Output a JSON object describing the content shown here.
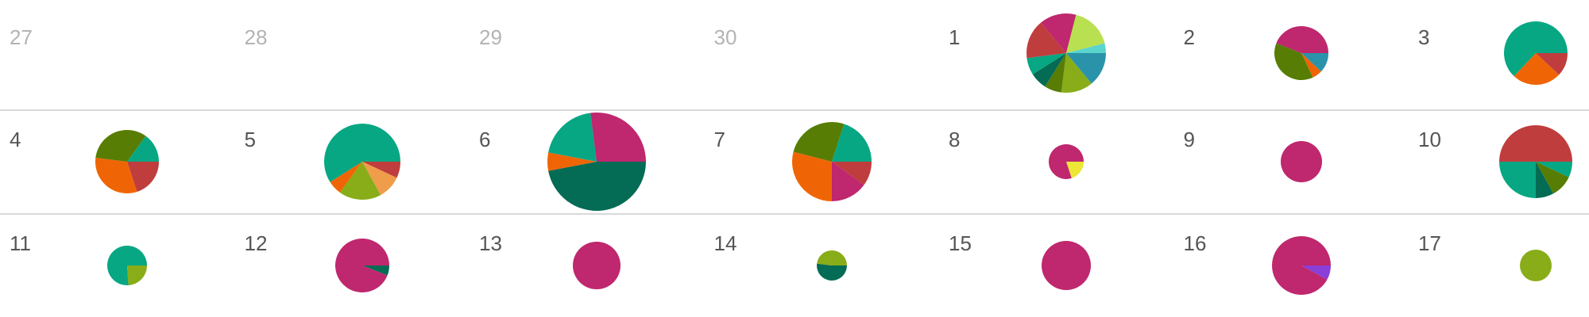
{
  "colors": {
    "magenta": "#bf276e",
    "teal": "#07a783",
    "orange": "#ef6505",
    "olive": "#577d05",
    "red": "#c03d3d",
    "lime": "#88ad19",
    "blue": "#2a93aa",
    "darkgreen": "#046b55",
    "yellowgreen": "#b9e050",
    "cyan": "#5ad4cc",
    "peach": "#ef9d4a",
    "yellow": "#ede637",
    "purple": "#8a3fd8",
    "text": "#555555",
    "muted_text": "#b3b3b3",
    "divider": "#d9d9d9"
  },
  "chart_data": {
    "type": "pie",
    "layout": "calendar",
    "weeks": [
      {
        "days": [
          {
            "label": "27",
            "muted": true,
            "size": 0,
            "slices": []
          },
          {
            "label": "28",
            "muted": true,
            "size": 0,
            "slices": []
          },
          {
            "label": "29",
            "muted": true,
            "size": 0,
            "slices": []
          },
          {
            "label": "30",
            "muted": true,
            "size": 0,
            "slices": []
          },
          {
            "label": "1",
            "muted": false,
            "size": 50,
            "slices": [
              {
                "color": "blue",
                "value": 14
              },
              {
                "color": "lime",
                "value": 13
              },
              {
                "color": "olive",
                "value": 7
              },
              {
                "color": "darkgreen",
                "value": 7
              },
              {
                "color": "teal",
                "value": 7
              },
              {
                "color": "red",
                "value": 16
              },
              {
                "color": "magenta",
                "value": 15
              },
              {
                "color": "yellowgreen",
                "value": 17
              },
              {
                "color": "cyan",
                "value": 4
              }
            ]
          },
          {
            "label": "2",
            "muted": false,
            "size": 34,
            "slices": [
              {
                "color": "blue",
                "value": 12
              },
              {
                "color": "orange",
                "value": 6
              },
              {
                "color": "olive",
                "value": 38
              },
              {
                "color": "magenta",
                "value": 44
              }
            ]
          },
          {
            "label": "3",
            "muted": false,
            "size": 40,
            "slices": [
              {
                "color": "red",
                "value": 12
              },
              {
                "color": "orange",
                "value": 25
              },
              {
                "color": "teal",
                "value": 63
              }
            ]
          }
        ]
      },
      {
        "days": [
          {
            "label": "4",
            "muted": false,
            "size": 40,
            "slices": [
              {
                "color": "red",
                "value": 20
              },
              {
                "color": "orange",
                "value": 32
              },
              {
                "color": "olive",
                "value": 33
              },
              {
                "color": "teal",
                "value": 15
              }
            ]
          },
          {
            "label": "5",
            "muted": false,
            "size": 48,
            "slices": [
              {
                "color": "red",
                "value": 7
              },
              {
                "color": "peach",
                "value": 10
              },
              {
                "color": "lime",
                "value": 18
              },
              {
                "color": "orange",
                "value": 6
              },
              {
                "color": "teal",
                "value": 59
              }
            ]
          },
          {
            "label": "6",
            "muted": false,
            "size": 62,
            "slices": [
              {
                "color": "darkgreen",
                "value": 47
              },
              {
                "color": "orange",
                "value": 6
              },
              {
                "color": "teal",
                "value": 20
              },
              {
                "color": "magenta",
                "value": 27
              }
            ]
          },
          {
            "label": "7",
            "muted": false,
            "size": 50,
            "slices": [
              {
                "color": "red",
                "value": 10
              },
              {
                "color": "magenta",
                "value": 15
              },
              {
                "color": "orange",
                "value": 29
              },
              {
                "color": "olive",
                "value": 26
              },
              {
                "color": "teal",
                "value": 20
              }
            ]
          },
          {
            "label": "8",
            "muted": false,
            "size": 22,
            "slices": [
              {
                "color": "yellow",
                "value": 20
              },
              {
                "color": "magenta",
                "value": 80
              }
            ]
          },
          {
            "label": "9",
            "muted": false,
            "size": 26,
            "slices": [
              {
                "color": "magenta",
                "value": 100
              }
            ]
          },
          {
            "label": "10",
            "muted": false,
            "size": 46,
            "slices": [
              {
                "color": "teal",
                "value": 7
              },
              {
                "color": "olive",
                "value": 10
              },
              {
                "color": "darkgreen",
                "value": 8
              },
              {
                "color": "teal",
                "value": 25
              },
              {
                "color": "red",
                "value": 50
              }
            ]
          }
        ]
      },
      {
        "days": [
          {
            "label": "11",
            "muted": false,
            "size": 25,
            "slices": [
              {
                "color": "lime",
                "value": 24
              },
              {
                "color": "teal",
                "value": 76
              }
            ]
          },
          {
            "label": "12",
            "muted": false,
            "size": 34,
            "slices": [
              {
                "color": "darkgreen",
                "value": 6
              },
              {
                "color": "magenta",
                "value": 94
              }
            ]
          },
          {
            "label": "13",
            "muted": false,
            "size": 30,
            "slices": [
              {
                "color": "magenta",
                "value": 100
              }
            ]
          },
          {
            "label": "14",
            "muted": false,
            "size": 19,
            "slices": [
              {
                "color": "darkgreen",
                "value": 52
              },
              {
                "color": "lime",
                "value": 48
              }
            ]
          },
          {
            "label": "15",
            "muted": false,
            "size": 31,
            "slices": [
              {
                "color": "magenta",
                "value": 100
              }
            ]
          },
          {
            "label": "16",
            "muted": false,
            "size": 37,
            "slices": [
              {
                "color": "purple",
                "value": 8
              },
              {
                "color": "magenta",
                "value": 92
              }
            ]
          },
          {
            "label": "17",
            "muted": false,
            "size": 20,
            "slices": [
              {
                "color": "lime",
                "value": 100
              }
            ]
          }
        ]
      }
    ]
  }
}
